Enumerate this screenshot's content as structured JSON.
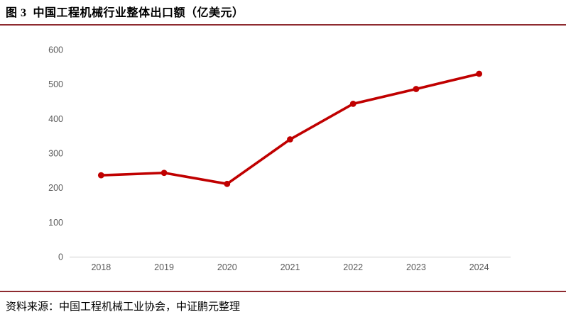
{
  "page": {
    "title": "图 3  中国工程机械行业整体出口额（亿美元）",
    "source": "资料来源：中国工程机械工业协会，中证鹏元整理"
  },
  "colors": {
    "divider_rule": "#8e2b30",
    "series_line": "#c00000",
    "axis_line": "#d9d9d9",
    "tick_label": "#595959",
    "background": "#ffffff"
  },
  "chart_data": {
    "type": "line",
    "title": "中国工程机械行业整体出口额（亿美元）",
    "categories": [
      "2018",
      "2019",
      "2020",
      "2021",
      "2022",
      "2023",
      "2024"
    ],
    "values": [
      236,
      243,
      211,
      340,
      443,
      486,
      530
    ],
    "xlabel": "",
    "ylabel": "",
    "ylim": [
      0,
      600
    ],
    "yticks": [
      0,
      100,
      200,
      300,
      400,
      500,
      600
    ],
    "grid": false,
    "legend": false,
    "marker": "circle",
    "line_color": "#c00000"
  }
}
